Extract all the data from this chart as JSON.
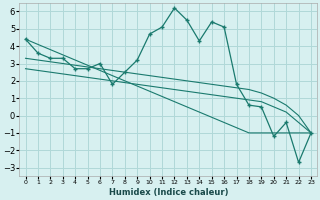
{
  "xlabel": "Humidex (Indice chaleur)",
  "x": [
    0,
    1,
    2,
    3,
    4,
    5,
    6,
    7,
    8,
    9,
    10,
    11,
    12,
    13,
    14,
    15,
    16,
    17,
    18,
    19,
    20,
    21,
    22,
    23
  ],
  "y_main": [
    4.4,
    3.6,
    3.3,
    3.3,
    2.7,
    2.7,
    3.0,
    1.8,
    2.5,
    3.2,
    4.7,
    5.1,
    6.2,
    5.5,
    4.3,
    5.4,
    5.1,
    1.8,
    0.6,
    0.5,
    -1.2,
    -0.4,
    -2.7,
    -1.0
  ],
  "y_line1": [
    4.4,
    4.1,
    3.8,
    3.5,
    3.2,
    2.9,
    2.6,
    2.3,
    2.0,
    1.7,
    1.4,
    1.1,
    0.8,
    0.5,
    0.2,
    -0.1,
    -0.4,
    -0.7,
    -1.0,
    -1.0,
    -1.0,
    -1.0,
    -1.0,
    -1.0
  ],
  "y_line2": [
    2.7,
    2.6,
    2.5,
    2.4,
    2.3,
    2.2,
    2.1,
    2.0,
    1.9,
    1.8,
    1.7,
    1.6,
    1.5,
    1.4,
    1.3,
    1.2,
    1.1,
    1.0,
    0.9,
    0.8,
    0.5,
    0.2,
    -0.4,
    -1.0
  ],
  "y_line3": [
    3.3,
    3.2,
    3.1,
    3.0,
    2.9,
    2.8,
    2.7,
    2.6,
    2.5,
    2.4,
    2.3,
    2.2,
    2.1,
    2.0,
    1.9,
    1.8,
    1.7,
    1.6,
    1.5,
    1.3,
    1.0,
    0.6,
    0.0,
    -1.0
  ],
  "color": "#1a7a6e",
  "bg_color": "#d7f0f0",
  "grid_color": "#b0d8d8",
  "ylim": [
    -3.5,
    6.5
  ],
  "yticks": [
    -3,
    -2,
    -1,
    0,
    1,
    2,
    3,
    4,
    5,
    6
  ],
  "xticks": [
    0,
    1,
    2,
    3,
    4,
    5,
    6,
    7,
    8,
    9,
    10,
    11,
    12,
    13,
    14,
    15,
    16,
    17,
    18,
    19,
    20,
    21,
    22,
    23
  ]
}
